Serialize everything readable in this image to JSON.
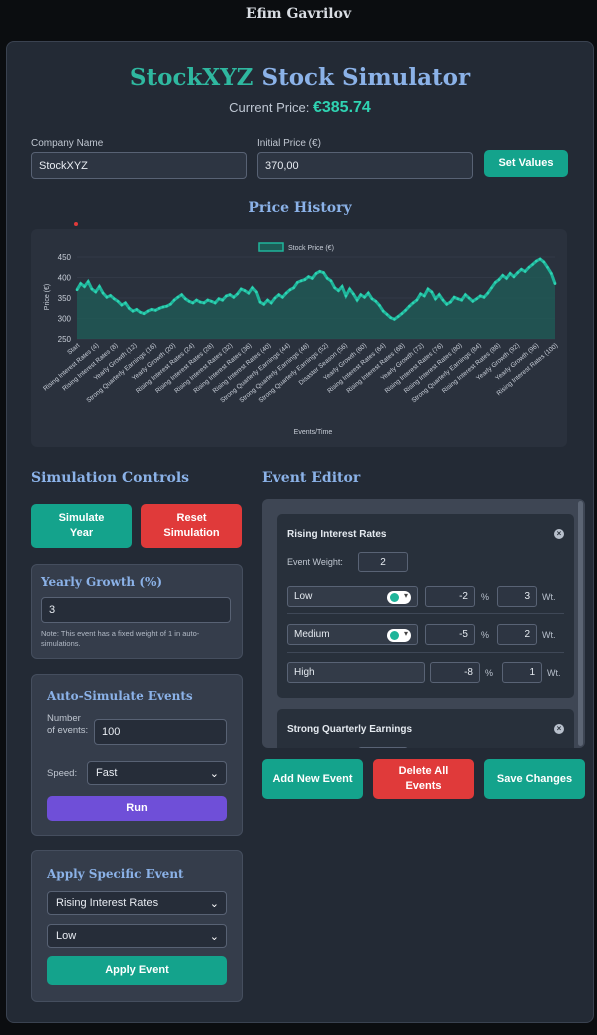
{
  "author": "Efim Gavrilov",
  "header": {
    "title_part1": "StockXYZ",
    "title_part2": "Stock Simulator",
    "current_price_label": "Current Price:",
    "current_price_value": "€385.74"
  },
  "form": {
    "company_label": "Company Name",
    "company_value": "StockXYZ",
    "price_label": "Initial Price (€)",
    "price_value": "370,00",
    "set_button": "Set Values"
  },
  "chart_title": "Price History",
  "chart_data": {
    "type": "line",
    "legend": "Stock Price (€)",
    "ylabel": "Price (€)",
    "xlabel": "Events/Time",
    "ylim": [
      250,
      450
    ],
    "yticks": [
      450,
      400,
      350,
      300,
      250
    ],
    "x_tick_labels": [
      "Start",
      "Rising Interest Rates (4)",
      "Rising Interest Rates (8)",
      "Yearly Growth (12)",
      "Strong Quarterly Earnings (16)",
      "Yearly Growth (20)",
      "Rising Interest Rates (24)",
      "Rising Interest Rates (28)",
      "Rising Interest Rates (32)",
      "Rising Interest Rates (36)",
      "Rising Interest Rates (40)",
      "Strong Quarterly Earnings (44)",
      "Strong Quarterly Earnings (48)",
      "Strong Quarterly Earnings (52)",
      "Disaster Season (56)",
      "Yearly Growth (60)",
      "Rising Interest Rates (64)",
      "Rising Interest Rates (68)",
      "Yearly Growth (72)",
      "Rising Interest Rates (76)",
      "Rising Interest Rates (80)",
      "Strong Quarterly Earnings (84)",
      "Rising Interest Rates (88)",
      "Yearly Growth (92)",
      "Yearly Growth (96)",
      "Rising Interest Rates (100)"
    ],
    "values": [
      370,
      385,
      378,
      390,
      372,
      365,
      378,
      362,
      352,
      356,
      348,
      342,
      333,
      338,
      325,
      318,
      322,
      315,
      312,
      318,
      322,
      320,
      325,
      328,
      330,
      335,
      345,
      352,
      358,
      348,
      342,
      338,
      345,
      340,
      338,
      345,
      342,
      338,
      348,
      345,
      355,
      358,
      352,
      360,
      372,
      368,
      362,
      375,
      365,
      340,
      335,
      345,
      338,
      350,
      358,
      352,
      362,
      370,
      375,
      388,
      392,
      395,
      402,
      398,
      410,
      415,
      412,
      398,
      392,
      375,
      368,
      378,
      355,
      372,
      360,
      345,
      358,
      352,
      362,
      348,
      342,
      332,
      318,
      310,
      302,
      298,
      305,
      312,
      320,
      330,
      338,
      345,
      360,
      355,
      372,
      365,
      348,
      358,
      345,
      335,
      340,
      352,
      348,
      345,
      358,
      350,
      342,
      348,
      355,
      352,
      362,
      375,
      388,
      395,
      405,
      398,
      410,
      402,
      412,
      420,
      415,
      425,
      432,
      440,
      445,
      438,
      425,
      410,
      385
    ]
  },
  "sim_controls": {
    "title": "Simulation Controls",
    "simulate_button": "Simulate Year",
    "reset_button": "Reset Simulation",
    "yearly_growth": {
      "title": "Yearly Growth (%)",
      "value": "3",
      "note": "Note: This event has a fixed weight of 1 in auto-simulations."
    },
    "auto": {
      "title": "Auto-Simulate Events",
      "num_label": "Number of events:",
      "num_value": "100",
      "speed_label": "Speed:",
      "speed_value": "Fast",
      "run_button": "Run"
    },
    "apply": {
      "title": "Apply Specific Event",
      "event_value": "Rising Interest Rates",
      "level_value": "Low",
      "apply_button": "Apply Event"
    }
  },
  "event_editor": {
    "title": "Event Editor",
    "events": [
      {
        "name": "Rising Interest Rates",
        "weight_label": "Event Weight:",
        "weight": "2",
        "levels": [
          {
            "name": "Low",
            "pct": "-2",
            "wt": "3"
          },
          {
            "name": "Medium",
            "pct": "-5",
            "wt": "2"
          },
          {
            "name": "High",
            "pct": "-8",
            "wt": "1"
          }
        ]
      },
      {
        "name": "Strong Quarterly Earnings"
      }
    ],
    "pct_unit": "%",
    "wt_unit": "Wt.",
    "add_button": "Add New Event",
    "delete_button": "Delete All Events",
    "save_button": "Save Changes"
  },
  "colors": {
    "accent": "#14a38c",
    "danger": "#e03a3a",
    "run": "#6f4fd8",
    "heading": "#8bb2e8"
  }
}
